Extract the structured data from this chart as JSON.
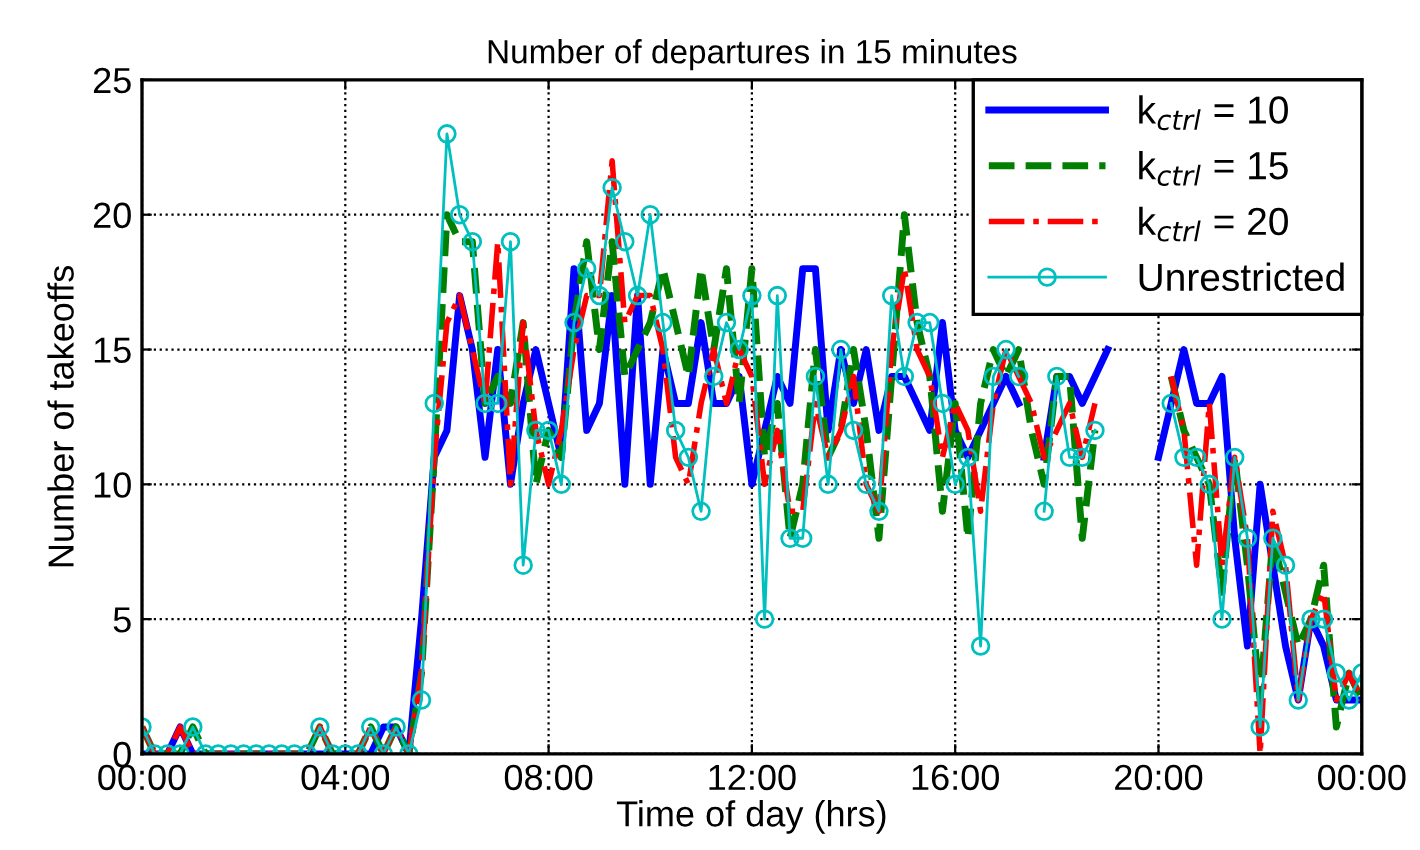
{
  "chart_data": {
    "type": "line",
    "title": "Number of departures in 15 minutes",
    "xlabel": "Time of day (hrs)",
    "ylabel": "Number of takeoffs",
    "x": [
      0,
      0.25,
      0.5,
      0.75,
      1,
      1.25,
      1.5,
      1.75,
      2,
      2.25,
      2.5,
      2.75,
      3,
      3.25,
      3.5,
      3.75,
      4,
      4.25,
      4.5,
      4.75,
      5,
      5.25,
      5.5,
      5.75,
      6,
      6.25,
      6.5,
      6.75,
      7,
      7.25,
      7.5,
      7.75,
      8,
      8.25,
      8.5,
      8.75,
      9,
      9.25,
      9.5,
      9.75,
      10,
      10.25,
      10.5,
      10.75,
      11,
      11.25,
      11.5,
      11.75,
      12,
      12.25,
      12.5,
      12.75,
      13,
      13.25,
      13.5,
      13.75,
      14,
      14.25,
      14.5,
      14.75,
      15,
      15.25,
      15.5,
      15.75,
      16,
      16.25,
      16.5,
      16.75,
      17,
      17.25,
      17.5,
      17.75,
      18,
      18.25,
      18.5,
      18.75,
      19,
      19.25,
      19.5,
      19.75,
      20,
      20.25,
      20.5,
      20.75,
      21,
      21.25,
      21.5,
      21.75,
      22,
      22.25,
      22.5,
      22.75,
      23,
      23.25,
      23.5,
      23.75,
      24
    ],
    "xlim": [
      0,
      24
    ],
    "xticks": [
      {
        "value": 0,
        "label": "00:00"
      },
      {
        "value": 4,
        "label": "04:00"
      },
      {
        "value": 8,
        "label": "08:00"
      },
      {
        "value": 12,
        "label": "12:00"
      },
      {
        "value": 16,
        "label": "16:00"
      },
      {
        "value": 20,
        "label": "20:00"
      },
      {
        "value": 24,
        "label": "00:00"
      }
    ],
    "ylim": [
      0,
      25
    ],
    "yticks": [
      0,
      5,
      10,
      15,
      20,
      25
    ],
    "grid": true,
    "legend": "top right",
    "series": [
      {
        "name": "k$_{ctrl}$ = 10",
        "color": "#0000ff",
        "line_style": "solid",
        "marker": "none",
        "values": [
          0,
          0,
          0,
          1,
          0,
          0,
          0,
          0,
          0,
          0,
          0,
          0,
          0,
          0,
          0,
          0,
          0,
          0,
          0,
          1,
          1,
          0,
          5,
          11,
          12,
          17,
          15,
          11,
          15,
          10,
          13,
          15,
          13,
          11,
          18,
          12,
          13,
          17,
          10,
          17,
          10,
          15,
          13,
          13,
          16,
          13,
          13,
          14,
          10,
          12,
          14,
          13,
          18,
          18,
          12,
          15,
          13,
          15,
          12,
          14,
          14,
          13,
          12,
          16,
          12,
          11,
          12,
          13,
          14,
          13,
          null,
          11,
          14,
          14,
          13,
          14,
          15,
          null,
          null,
          null,
          11,
          13,
          15,
          13,
          13,
          14,
          8,
          4,
          10,
          7,
          4,
          2,
          5,
          4,
          2,
          2,
          2
        ]
      },
      {
        "name": "k$_{ctrl}$ = 15",
        "color": "#007f00",
        "line_style": "dashed",
        "marker": "none",
        "values": [
          1,
          0,
          0,
          0,
          1,
          0,
          0,
          0,
          0,
          0,
          0,
          0,
          0,
          0,
          1,
          0,
          0,
          0,
          1,
          0,
          1,
          0,
          3,
          11,
          20,
          19,
          19,
          13,
          14,
          13,
          16,
          10,
          12,
          11,
          16,
          19,
          15,
          19,
          14,
          15,
          16,
          18,
          16,
          14,
          18,
          15,
          18,
          13,
          18,
          11,
          13,
          8,
          10,
          15,
          11,
          12,
          15,
          12,
          8,
          14,
          20,
          16,
          14,
          9,
          13,
          8,
          13,
          15,
          14,
          15,
          12,
          10,
          14,
          14,
          8,
          12,
          null,
          null,
          null,
          null,
          null,
          14,
          12,
          11,
          10,
          6,
          11,
          7,
          2,
          8,
          6,
          4,
          5,
          7,
          1,
          3,
          2
        ]
      },
      {
        "name": "k$_{ctrl}$ = 20",
        "color": "#ff0000",
        "line_style": "dashdot",
        "marker": "none",
        "values": [
          1,
          0,
          0,
          1,
          0,
          0,
          0,
          0,
          0,
          0,
          0,
          0,
          0,
          0,
          1,
          0,
          0,
          0,
          1,
          0,
          1,
          0,
          3,
          11,
          16,
          17,
          15,
          13,
          19,
          10,
          16,
          12,
          10,
          12,
          15,
          17,
          17,
          22,
          16,
          17,
          17,
          15,
          11,
          10,
          13,
          15,
          13,
          15,
          14,
          10,
          12,
          9,
          9,
          13,
          11,
          12,
          14,
          10,
          9,
          15,
          18,
          15,
          14,
          11,
          13,
          12,
          9,
          13,
          15,
          14,
          13,
          11,
          12,
          13,
          11,
          13,
          null,
          null,
          null,
          null,
          null,
          14,
          12,
          7,
          13,
          7,
          11,
          8,
          0,
          9,
          7,
          2,
          5,
          6,
          2,
          3,
          2
        ]
      },
      {
        "name": "Unrestricted",
        "color": "#00bfbf",
        "line_style": "solid",
        "marker": "circle",
        "values": [
          1,
          0,
          0,
          0,
          1,
          0,
          0,
          0,
          0,
          0,
          0,
          0,
          0,
          0,
          1,
          0,
          0,
          0,
          1,
          0,
          1,
          0,
          2,
          13,
          23,
          20,
          19,
          13,
          13,
          19,
          7,
          12,
          12,
          10,
          16,
          18,
          17,
          21,
          19,
          17,
          20,
          16,
          12,
          11,
          9,
          14,
          16,
          15,
          17,
          5,
          17,
          8,
          8,
          14,
          10,
          15,
          12,
          10,
          9,
          17,
          14,
          16,
          16,
          13,
          10,
          11,
          4,
          14,
          15,
          14,
          null,
          9,
          14,
          11,
          11,
          12,
          null,
          null,
          null,
          null,
          null,
          13,
          11,
          11,
          10,
          5,
          11,
          8,
          1,
          8,
          7,
          2,
          5,
          5,
          3,
          2,
          3
        ]
      }
    ]
  }
}
